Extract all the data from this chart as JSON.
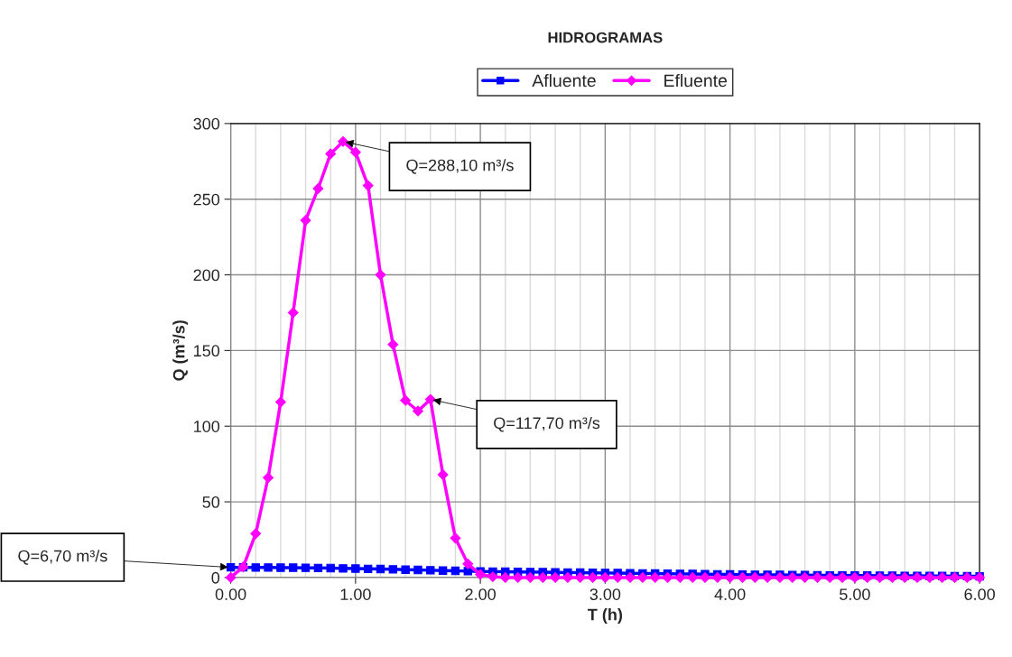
{
  "chart_data": {
    "type": "line",
    "title": "HIDROGRAMAS",
    "xlabel": "T (h)",
    "ylabel": "Q (m³/s)",
    "x": [
      0,
      0.1,
      0.2,
      0.3,
      0.4,
      0.5,
      0.6,
      0.7,
      0.8,
      0.9,
      1.0,
      1.1,
      1.2,
      1.3,
      1.4,
      1.5,
      1.6,
      1.7,
      1.8,
      1.9,
      2.0,
      2.1,
      2.2,
      2.3,
      2.4,
      2.5,
      2.6,
      2.7,
      2.8,
      2.9,
      3.0,
      3.1,
      3.2,
      3.3,
      3.4,
      3.5,
      3.6,
      3.7,
      3.8,
      3.9,
      4.0,
      4.1,
      4.2,
      4.3,
      4.4,
      4.5,
      4.6,
      4.7,
      4.8,
      4.9,
      5.0,
      5.1,
      5.2,
      5.3,
      5.4,
      5.5,
      5.6,
      5.7,
      5.8,
      5.9,
      6.0
    ],
    "series": [
      {
        "name": "Afluente",
        "color": "#0000ff",
        "marker": "square",
        "values": [
          6.7,
          6.7,
          6.6,
          6.6,
          6.5,
          6.5,
          6.4,
          6.3,
          6.2,
          6.0,
          5.9,
          5.7,
          5.6,
          5.4,
          5.2,
          5.0,
          4.8,
          4.6,
          4.4,
          4.2,
          4.0,
          3.9,
          3.8,
          3.7,
          3.6,
          3.5,
          3.4,
          3.3,
          3.2,
          3.1,
          3.0,
          2.9,
          2.8,
          2.7,
          2.6,
          2.5,
          2.4,
          2.3,
          2.2,
          2.1,
          2.0,
          1.9,
          1.8,
          1.8,
          1.7,
          1.6,
          1.6,
          1.5,
          1.4,
          1.4,
          1.3,
          1.3,
          1.2,
          1.2,
          1.1,
          1.1,
          1.0,
          1.0,
          0.9,
          0.9,
          0.8
        ]
      },
      {
        "name": "Efluente",
        "color": "#ff00ff",
        "marker": "diamond",
        "values": [
          0,
          7,
          29,
          66,
          116,
          175,
          236,
          257,
          280,
          288.1,
          281,
          259,
          200,
          154,
          117,
          110,
          117.7,
          68,
          26,
          9,
          2,
          0.5,
          0,
          0,
          0,
          0,
          0,
          0,
          0,
          0,
          0,
          0,
          0,
          0,
          0,
          0,
          0,
          0,
          0,
          0,
          0,
          0,
          0,
          0,
          0,
          0,
          0,
          0,
          0,
          0,
          0,
          0,
          0,
          0,
          0,
          0,
          0,
          0,
          0,
          0,
          0
        ]
      }
    ],
    "xlim": [
      0,
      6
    ],
    "xticks": [
      {
        "value": 0,
        "label": "0.00"
      },
      {
        "value": 0.2,
        "label": null
      },
      {
        "value": 0.4,
        "label": null
      },
      {
        "value": 0.6,
        "label": null
      },
      {
        "value": 0.8,
        "label": null
      },
      {
        "value": 1,
        "label": "1.00"
      },
      {
        "value": 1.2,
        "label": null
      },
      {
        "value": 1.4,
        "label": null
      },
      {
        "value": 1.6,
        "label": null
      },
      {
        "value": 1.8,
        "label": null
      },
      {
        "value": 2,
        "label": "2.00"
      },
      {
        "value": 2.2,
        "label": null
      },
      {
        "value": 2.4,
        "label": null
      },
      {
        "value": 2.6,
        "label": null
      },
      {
        "value": 2.8,
        "label": null
      },
      {
        "value": 3,
        "label": "3.00"
      },
      {
        "value": 3.2,
        "label": null
      },
      {
        "value": 3.4,
        "label": null
      },
      {
        "value": 3.6,
        "label": null
      },
      {
        "value": 3.8,
        "label": null
      },
      {
        "value": 4,
        "label": "4.00"
      },
      {
        "value": 4.2,
        "label": null
      },
      {
        "value": 4.4,
        "label": null
      },
      {
        "value": 4.6,
        "label": null
      },
      {
        "value": 4.8,
        "label": null
      },
      {
        "value": 5,
        "label": "5.00"
      },
      {
        "value": 5.2,
        "label": null
      },
      {
        "value": 5.4,
        "label": null
      },
      {
        "value": 5.6,
        "label": null
      },
      {
        "value": 5.8,
        "label": null
      },
      {
        "value": 6,
        "label": "6.00"
      }
    ],
    "ylim": [
      0,
      300
    ],
    "yticks": [
      0,
      50,
      100,
      150,
      200,
      250,
      300
    ],
    "grid": true,
    "legend": "top",
    "annotations": [
      {
        "text": "Q=288,10 m³/s",
        "x": 0.9,
        "y": 288.1
      },
      {
        "text": "Q=117,70 m³/s",
        "x": 1.6,
        "y": 117.7
      },
      {
        "text": "Q=6,70 m³/s",
        "x": 0,
        "y": 6.7
      }
    ]
  }
}
